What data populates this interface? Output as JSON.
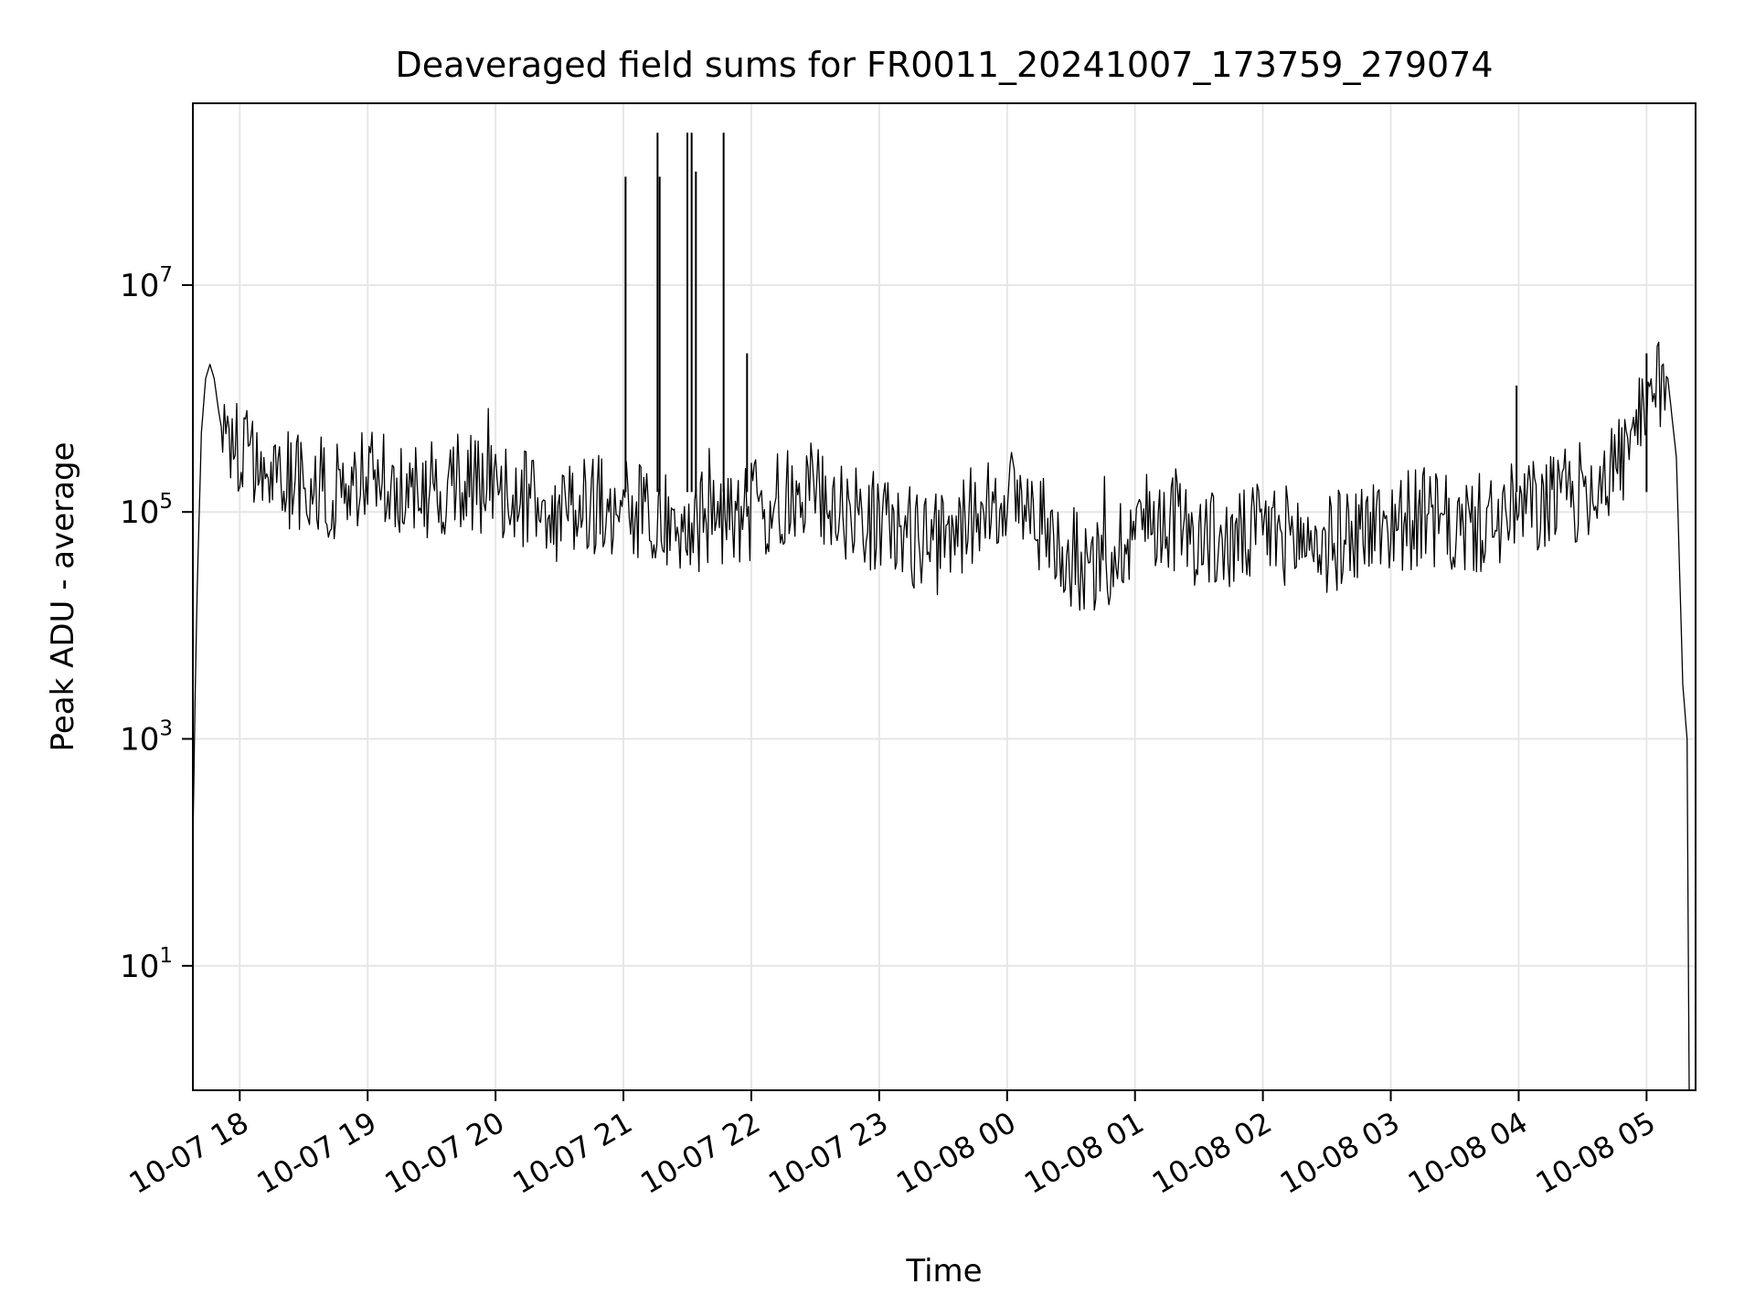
{
  "chart_data": {
    "type": "line",
    "title": "Deaveraged field sums for FR0011_20241007_173759_279074",
    "xlabel": "Time",
    "ylabel": "Peak ADU - average",
    "yscale": "log",
    "ylim": [
      0.8,
      400000000
    ],
    "xlim": [
      "2024-10-07 17:38",
      "2024-10-08 05:23"
    ],
    "grid": true,
    "x_ticks": [
      {
        "t": "2024-10-07 18:00",
        "label": "10-07 18"
      },
      {
        "t": "2024-10-07 19:00",
        "label": "10-07 19"
      },
      {
        "t": "2024-10-07 20:00",
        "label": "10-07 20"
      },
      {
        "t": "2024-10-07 21:00",
        "label": "10-07 21"
      },
      {
        "t": "2024-10-07 22:00",
        "label": "10-07 22"
      },
      {
        "t": "2024-10-07 23:00",
        "label": "10-07 23"
      },
      {
        "t": "2024-10-08 00:00",
        "label": "10-08 00"
      },
      {
        "t": "2024-10-08 01:00",
        "label": "10-08 01"
      },
      {
        "t": "2024-10-08 02:00",
        "label": "10-08 02"
      },
      {
        "t": "2024-10-08 03:00",
        "label": "10-08 03"
      },
      {
        "t": "2024-10-08 04:00",
        "label": "10-08 04"
      },
      {
        "t": "2024-10-08 05:00",
        "label": "10-08 05"
      }
    ],
    "y_ticks": [
      {
        "value": 10,
        "base": "10",
        "exp": "1"
      },
      {
        "value": 1000,
        "base": "10",
        "exp": "3"
      },
      {
        "value": 100000,
        "base": "10",
        "exp": "5"
      },
      {
        "value": 10000000,
        "base": "10",
        "exp": "7"
      }
    ],
    "series": [
      {
        "color": "#000000",
        "x": [
          "2024-10-07 17:38",
          "2024-10-07 17:39",
          "2024-10-07 17:40",
          "2024-10-07 17:41",
          "2024-10-07 17:42",
          "2024-10-07 17:44",
          "2024-10-07 17:46",
          "2024-10-07 17:48",
          "2024-10-07 17:50",
          "2024-10-07 17:52",
          "2024-10-07 17:55",
          "2024-10-07 18:00",
          "2024-10-07 18:10",
          "2024-10-07 18:20",
          "2024-10-07 18:30",
          "2024-10-07 18:45",
          "2024-10-07 19:00",
          "2024-10-07 19:15",
          "2024-10-07 19:30",
          "2024-10-07 19:45",
          "2024-10-07 20:00",
          "2024-10-07 20:15",
          "2024-10-07 20:30",
          "2024-10-07 20:45",
          "2024-10-07 21:00",
          "2024-10-07 21:15",
          "2024-10-07 21:30",
          "2024-10-07 21:45",
          "2024-10-07 22:00",
          "2024-10-07 22:15",
          "2024-10-07 22:30",
          "2024-10-07 22:45",
          "2024-10-07 23:00",
          "2024-10-07 23:15",
          "2024-10-07 23:30",
          "2024-10-07 23:45",
          "2024-10-08 00:00",
          "2024-10-08 00:15",
          "2024-10-08 00:30",
          "2024-10-08 00:45",
          "2024-10-08 01:00",
          "2024-10-08 01:15",
          "2024-10-08 01:30",
          "2024-10-08 01:45",
          "2024-10-08 02:00",
          "2024-10-08 02:15",
          "2024-10-08 02:30",
          "2024-10-08 02:45",
          "2024-10-08 03:00",
          "2024-10-08 03:15",
          "2024-10-08 03:30",
          "2024-10-08 03:45",
          "2024-10-08 04:00",
          "2024-10-08 04:15",
          "2024-10-08 04:30",
          "2024-10-08 04:45",
          "2024-10-08 05:00",
          "2024-10-08 05:05",
          "2024-10-08 05:10",
          "2024-10-08 05:14",
          "2024-10-08 05:17",
          "2024-10-08 05:19",
          "2024-10-08 05:20"
        ],
        "y": [
          120,
          2000,
          20000,
          100000,
          500000,
          1500000,
          2000000,
          1500000,
          800000,
          500000,
          400000,
          300000,
          250000,
          200000,
          180000,
          150000,
          200000,
          150000,
          150000,
          200000,
          150000,
          120000,
          100000,
          120000,
          100000,
          90000,
          80000,
          90000,
          100000,
          120000,
          150000,
          100000,
          80000,
          60000,
          50000,
          100000,
          150000,
          80000,
          40000,
          30000,
          80000,
          90000,
          60000,
          50000,
          70000,
          60000,
          50000,
          70000,
          80000,
          90000,
          70000,
          80000,
          100000,
          120000,
          150000,
          250000,
          600000,
          1200000,
          1500000,
          300000,
          3000,
          1000,
          0.8
        ],
        "spikes": [
          {
            "x": "2024-10-07 21:01",
            "y": 90000000
          },
          {
            "x": "2024-10-07 21:16",
            "y": 220000000
          },
          {
            "x": "2024-10-07 21:17",
            "y": 90000000
          },
          {
            "x": "2024-10-07 21:30",
            "y": 220000000
          },
          {
            "x": "2024-10-07 21:32",
            "y": 220000000
          },
          {
            "x": "2024-10-07 21:34",
            "y": 100000000
          },
          {
            "x": "2024-10-07 21:47",
            "y": 220000000
          },
          {
            "x": "2024-10-07 21:58",
            "y": 2500000
          },
          {
            "x": "2024-10-08 03:59",
            "y": 1300000
          },
          {
            "x": "2024-10-08 05:00",
            "y": 2500000
          }
        ]
      }
    ]
  }
}
